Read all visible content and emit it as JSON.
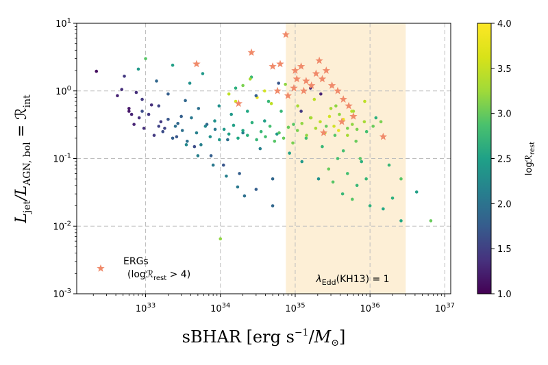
{
  "chart_data": {
    "type": "scatter",
    "title": "",
    "xlabel": "sBHAR [erg s⁻¹/M⊙]",
    "ylabel": "Ljet/LAGN,bol = ℛint",
    "xscale": "log",
    "yscale": "log",
    "xlim": [
      1.2e+32,
      1.2e+37
    ],
    "ylim": [
      0.001,
      10
    ],
    "x_ticks": [
      1e+33,
      1e+34,
      1e+35,
      1e+36,
      1e+37
    ],
    "x_tick_labels": [
      "10^33",
      "10^34",
      "10^35",
      "10^36",
      "10^37"
    ],
    "y_ticks": [
      0.001,
      0.01,
      0.1,
      1,
      10
    ],
    "y_tick_labels": [
      "10^-3",
      "10^-2",
      "10^-1",
      "10^0",
      "10^1"
    ],
    "grid": true,
    "shaded_region": {
      "x_range": [
        7.5e+34,
        3e+36
      ],
      "label": "λEdd(KH13) = 1",
      "color": "#fdefd6"
    },
    "colorbar": {
      "label": "logℛrest",
      "range": [
        1.0,
        4.0
      ],
      "ticks": [
        "1.0",
        "1.5",
        "2.0",
        "2.5",
        "3.0",
        "3.5",
        "4.0"
      ],
      "colormap": "viridis"
    },
    "legend": {
      "placement": "bottom-left",
      "entries": [
        {
          "marker": "star",
          "color": "#f08a6a",
          "label": "ERGs",
          "sublabel": "(logℛrest > 4)"
        }
      ]
    },
    "series": [
      {
        "name": "ERGs",
        "marker": "star",
        "color": "#f08a6a",
        "x": [
          4.8e+33,
          2.6e+34,
          1.75e+34,
          5.8e+34,
          6.3e+34,
          5e+34,
          7.5e+34,
          9.6e+34,
          1.05e+35,
          1.2e+35,
          1.4e+35,
          1.65e+35,
          1.9e+35,
          2.1e+35,
          2.3e+35,
          2.6e+35,
          3.1e+35,
          3.7e+35,
          4.4e+35,
          5.2e+35,
          6e+35,
          4.2e+35,
          8e+34,
          1.3e+35,
          2.4e+35,
          1.5e+36,
          1e+35
        ],
        "y": [
          2.5,
          3.7,
          0.65,
          1.0,
          2.5,
          2.3,
          6.8,
          1.1,
          1.5,
          2.3,
          1.4,
          1.2,
          1.8,
          2.8,
          1.5,
          2.0,
          1.2,
          1.0,
          0.75,
          0.6,
          0.42,
          0.35,
          0.85,
          1.0,
          0.24,
          0.21,
          2.0
        ]
      },
      {
        "name": "",
        "marker": "circle",
        "colormap": "viridis",
        "color_value_key": "c",
        "x": [
          2.2e+32,
          4.2e+32,
          4.8e+32,
          5.2e+32,
          6e+32,
          6.5e+32,
          7.5e+32,
          8e+32,
          9e+32,
          1e+33,
          1.2e+33,
          1.4e+33,
          1.6e+33,
          1.8e+33,
          2e+33,
          2.3e+33,
          2.6e+33,
          3e+33,
          3.4e+33,
          3.9e+33,
          4.5e+33,
          5.1e+33,
          5.8e+33,
          6.6e+33,
          7.5e+33,
          8.5e+33,
          9.6e+33,
          1.1e+34,
          1.25e+34,
          1.4e+34,
          1.6e+34,
          1.8e+34,
          2e+34,
          2.3e+34,
          2.6e+34,
          3e+34,
          3.4e+34,
          3.9e+34,
          4.4e+34,
          5e+34,
          5.7e+34,
          6.5e+34,
          7.4e+34,
          8.4e+34,
          9.5e+34,
          1.08e+35,
          1.23e+35,
          1.4e+35,
          1.6e+35,
          1.8e+35,
          2.05e+35,
          2.3e+35,
          2.6e+35,
          3e+35,
          3.4e+35,
          3.9e+35,
          4.4e+35,
          5e+35,
          5.7e+35,
          6.5e+35,
          7.4e+35,
          8.4e+35,
          6e+32,
          7e+32,
          8.2e+32,
          9.5e+32,
          1.1e+33,
          1.3e+33,
          1.5e+33,
          1.7e+33,
          2e+33,
          2.3e+33,
          2.7e+33,
          3.1e+33,
          3.6e+33,
          4.1e+33,
          4.8e+33,
          5.5e+33,
          6.3e+33,
          7.3e+33,
          8.4e+33,
          9.7e+33,
          1.12e+34,
          1.3e+34,
          1.5e+34,
          1.72e+34,
          2e+34,
          2.3e+34,
          2.65e+34,
          3.05e+34,
          3.5e+34,
          4e+34,
          4.6e+34,
          5.3e+34,
          6.1e+34,
          7e+34,
          8.1e+34,
          9.3e+34,
          1.07e+35,
          1.23e+35,
          1.42e+35,
          1.63e+35,
          1.88e+35,
          2.16e+35,
          2.5e+35,
          2.87e+35,
          3.3e+35,
          3.8e+35,
          4.4e+35,
          5e+35,
          5.8e+35,
          6.7e+35,
          2.8e+35,
          3.2e+35,
          3.7e+35,
          4.3e+35,
          5e+35,
          5.8e+35,
          6.7e+35,
          7.7e+35,
          8.9e+35,
          1e+36,
          1.5e+36,
          2e+36,
          2.6e+36,
          4.2e+36,
          6.5e+36,
          1e+34,
          1.3e+34,
          1.6e+34,
          2e+34,
          2.5e+34,
          3.1e+34,
          3.9e+34,
          4.8e+34,
          6e+34,
          3e+34,
          5e+34,
          2.1e+34,
          1.7e+34,
          1.2e+34,
          8e+33,
          5e+33,
          3.5e+33,
          2.5e+33,
          1.5e+33,
          9e+32,
          1.2e+35,
          1.6e+35,
          2.2e+35,
          3.5e+35,
          6e+35,
          8.5e+35,
          1.1e+36,
          1.4e+36,
          2.6e+36,
          1.8e+36,
          1.2e+36,
          9e+35
        ],
        "y": [
          1.95,
          0.85,
          1.05,
          1.65,
          0.55,
          0.45,
          0.95,
          2.1,
          0.75,
          3.0,
          0.62,
          1.4,
          0.35,
          0.28,
          0.9,
          2.4,
          0.21,
          0.42,
          0.72,
          1.3,
          0.15,
          0.55,
          1.8,
          0.32,
          0.11,
          0.27,
          0.6,
          0.08,
          0.19,
          0.45,
          1.1,
          0.06,
          0.24,
          0.5,
          1.6,
          0.035,
          0.14,
          0.36,
          0.7,
          0.05,
          0.23,
          0.5,
          1.25,
          0.12,
          0.32,
          0.6,
          0.09,
          0.2,
          0.4,
          0.75,
          0.05,
          0.15,
          0.3,
          0.55,
          0.22,
          0.45,
          0.13,
          0.28,
          0.5,
          0.18,
          0.1,
          0.35,
          0.5,
          0.32,
          0.4,
          0.28,
          0.45,
          0.22,
          0.3,
          0.25,
          0.38,
          0.2,
          0.33,
          0.26,
          0.18,
          0.4,
          0.24,
          0.16,
          0.3,
          0.21,
          0.36,
          0.19,
          0.27,
          0.23,
          0.31,
          0.2,
          0.26,
          0.22,
          0.34,
          0.19,
          0.25,
          0.21,
          0.3,
          0.18,
          0.24,
          0.2,
          0.29,
          0.17,
          0.26,
          0.33,
          0.22,
          0.4,
          0.28,
          0.35,
          0.24,
          0.42,
          0.3,
          0.26,
          0.38,
          0.22,
          0.32,
          0.27,
          0.07,
          0.045,
          0.1,
          0.03,
          0.06,
          0.025,
          0.04,
          0.09,
          0.05,
          0.02,
          0.018,
          0.026,
          0.012,
          0.032,
          0.012,
          0.0065,
          0.9,
          0.7,
          1.2,
          1.5,
          0.8,
          1.0,
          0.65,
          1.3,
          0.85,
          0.02,
          0.028,
          0.038,
          0.055,
          0.08,
          0.11,
          0.16,
          0.3,
          0.6,
          0.5,
          0.5,
          1.1,
          0.9,
          0.6,
          0.5,
          0.7,
          0.3,
          0.35,
          0.05,
          0.08,
          0.4,
          0.25
        ],
        "c": [
          1.1,
          1.3,
          1.4,
          1.5,
          1.2,
          1.3,
          1.4,
          2.6,
          1.5,
          3.2,
          1.4,
          2.0,
          1.5,
          1.6,
          1.9,
          2.7,
          1.8,
          1.9,
          2.0,
          2.5,
          1.7,
          2.1,
          2.6,
          2.0,
          1.9,
          2.2,
          2.5,
          1.8,
          2.1,
          2.6,
          2.9,
          1.9,
          2.3,
          2.8,
          3.0,
          1.9,
          2.3,
          2.7,
          3.0,
          2.0,
          2.6,
          3.0,
          3.5,
          2.7,
          3.2,
          3.6,
          2.6,
          3.1,
          3.4,
          3.7,
          2.5,
          3.0,
          3.3,
          3.6,
          3.2,
          3.5,
          3.1,
          3.4,
          3.7,
          3.3,
          3.2,
          3.6,
          1.2,
          1.3,
          1.4,
          1.4,
          1.5,
          1.5,
          1.6,
          1.7,
          1.8,
          1.9,
          2.0,
          2.1,
          2.1,
          2.2,
          2.3,
          2.3,
          2.4,
          2.5,
          2.5,
          2.6,
          2.6,
          2.7,
          2.7,
          2.8,
          2.8,
          2.9,
          2.9,
          3.0,
          3.0,
          3.1,
          3.1,
          3.2,
          3.2,
          3.3,
          3.3,
          3.4,
          3.4,
          3.5,
          3.5,
          3.6,
          3.6,
          3.7,
          3.7,
          3.8,
          3.8,
          3.9,
          3.9,
          3.6,
          3.5,
          3.4,
          3.3,
          3.2,
          3.1,
          3.0,
          3.1,
          3.2,
          3.0,
          2.9,
          3.0,
          2.9,
          2.8,
          2.9,
          2.8,
          2.7,
          3.3,
          3.5,
          3.7,
          3.8,
          3.4,
          3.6,
          3.9,
          3.8,
          3.7,
          1.8,
          1.9,
          2.0,
          2.1,
          2.2,
          2.3,
          2.2,
          2.3,
          2.4,
          2.1,
          1.6,
          1.7,
          1.5,
          1.4,
          1.3,
          3.5,
          3.6,
          3.7,
          3.3,
          3.4,
          3.2,
          3.0,
          2.9,
          3.1
        ]
      }
    ]
  }
}
